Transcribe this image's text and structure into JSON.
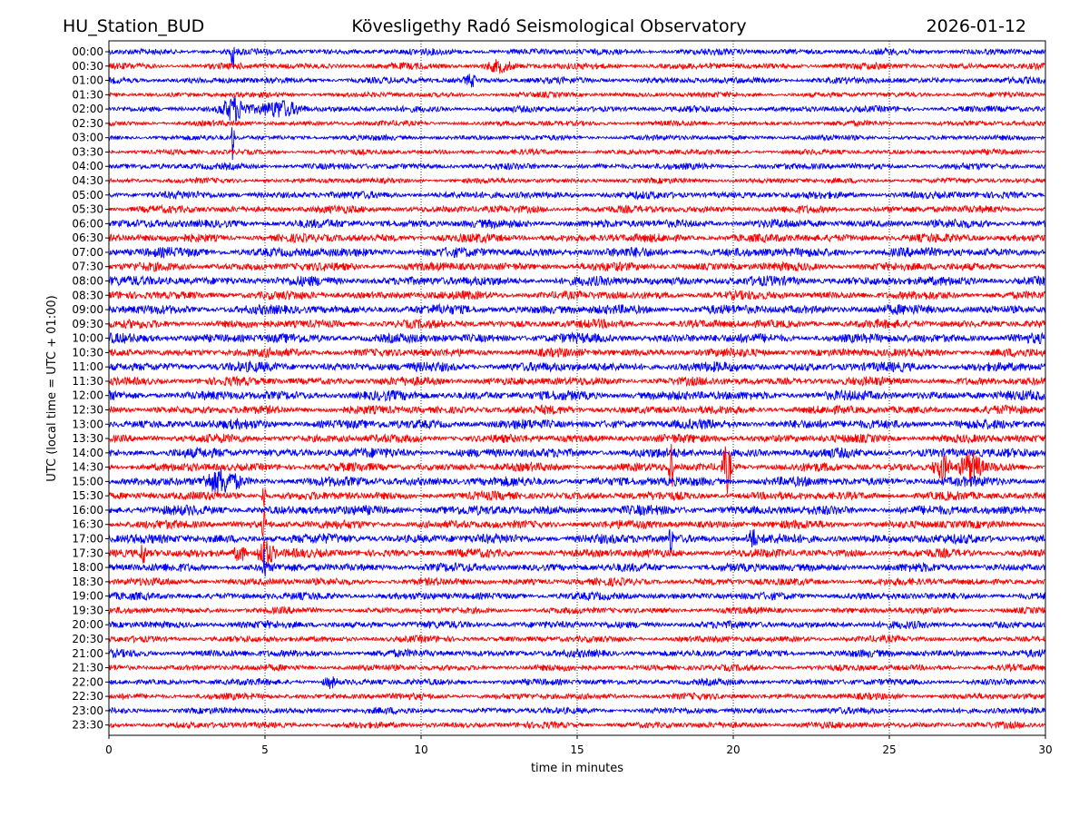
{
  "header": {
    "station": "HU_Station_BUD",
    "title": "Kövesligethy Radó Seismological Observatory",
    "date": "2026-01-12"
  },
  "chart_data": {
    "type": "line",
    "title": "Kövesligethy Radó Seismological Observatory",
    "station": "HU_Station_BUD",
    "date": "2026-01-12",
    "xlabel": "time in minutes",
    "ylabel": "UTC (local time = UTC + 01:00)",
    "xlim": [
      0,
      30
    ],
    "x_ticks": [
      0,
      5,
      10,
      15,
      20,
      25,
      30
    ],
    "x_gridlines": [
      5,
      10,
      15,
      20,
      25
    ],
    "grid": "vertical dotted",
    "series_colors": [
      "#0000ff",
      "#ff0000"
    ],
    "row_labels": [
      "00:00",
      "00:30",
      "01:00",
      "01:30",
      "02:00",
      "02:30",
      "03:00",
      "03:30",
      "04:00",
      "04:30",
      "05:00",
      "05:30",
      "06:00",
      "06:30",
      "07:00",
      "07:30",
      "08:00",
      "08:30",
      "09:00",
      "09:30",
      "10:00",
      "10:30",
      "11:00",
      "11:30",
      "12:00",
      "12:30",
      "13:00",
      "13:30",
      "14:00",
      "14:30",
      "15:00",
      "15:30",
      "16:00",
      "16:30",
      "17:00",
      "17:30",
      "18:00",
      "18:30",
      "19:00",
      "19:30",
      "20:00",
      "20:30",
      "21:00",
      "21:30",
      "22:00",
      "22:30",
      "23:00",
      "23:30"
    ],
    "baseline_amplitude": [
      3,
      3,
      3,
      2.5,
      3,
      2.5,
      2.5,
      2.5,
      3,
      2.5,
      3.5,
      3.5,
      4,
      4,
      4.5,
      4,
      4.5,
      4,
      4.5,
      4,
      4.5,
      4,
      4.5,
      4,
      4.5,
      4,
      4.5,
      4,
      4.5,
      4,
      4.5,
      4,
      4.5,
      4,
      4.5,
      4,
      4,
      3.5,
      3.5,
      3,
      3.5,
      3,
      3.5,
      3,
      3,
      3,
      3,
      3
    ],
    "events": [
      {
        "row": 0,
        "minute": 3.97,
        "amp": 34,
        "dur": 0.06
      },
      {
        "row": 4,
        "minute": 4.0,
        "amp": 12,
        "dur": 0.6
      },
      {
        "row": 4,
        "minute": 5.5,
        "amp": 10,
        "dur": 1.0
      },
      {
        "row": 1,
        "minute": 12.5,
        "amp": 6,
        "dur": 0.6
      },
      {
        "row": 2,
        "minute": 11.6,
        "amp": 6,
        "dur": 0.3
      },
      {
        "row": 6,
        "minute": 3.97,
        "amp": 30,
        "dur": 0.06
      },
      {
        "row": 29,
        "minute": 18.0,
        "amp": 40,
        "dur": 0.1
      },
      {
        "row": 29,
        "minute": 19.8,
        "amp": 28,
        "dur": 0.2
      },
      {
        "row": 29,
        "minute": 26.7,
        "amp": 14,
        "dur": 0.4
      },
      {
        "row": 29,
        "minute": 27.6,
        "amp": 16,
        "dur": 0.5
      },
      {
        "row": 30,
        "minute": 3.6,
        "amp": 11,
        "dur": 0.8
      },
      {
        "row": 34,
        "minute": 20.6,
        "amp": 12,
        "dur": 0.2
      },
      {
        "row": 35,
        "minute": 1.1,
        "amp": 14,
        "dur": 0.12
      },
      {
        "row": 35,
        "minute": 4.2,
        "amp": 10,
        "dur": 0.3
      },
      {
        "row": 35,
        "minute": 5.0,
        "amp": 16,
        "dur": 0.4
      },
      {
        "row": 36,
        "minute": 4.97,
        "amp": 18,
        "dur": 0.1
      },
      {
        "row": 33,
        "minute": 4.97,
        "amp": 16,
        "dur": 0.1
      },
      {
        "row": 31,
        "minute": 4.97,
        "amp": 16,
        "dur": 0.1
      },
      {
        "row": 44,
        "minute": 7.1,
        "amp": 6,
        "dur": 0.3
      },
      {
        "row": 34,
        "minute": 18.0,
        "amp": 16,
        "dur": 0.1
      }
    ]
  }
}
